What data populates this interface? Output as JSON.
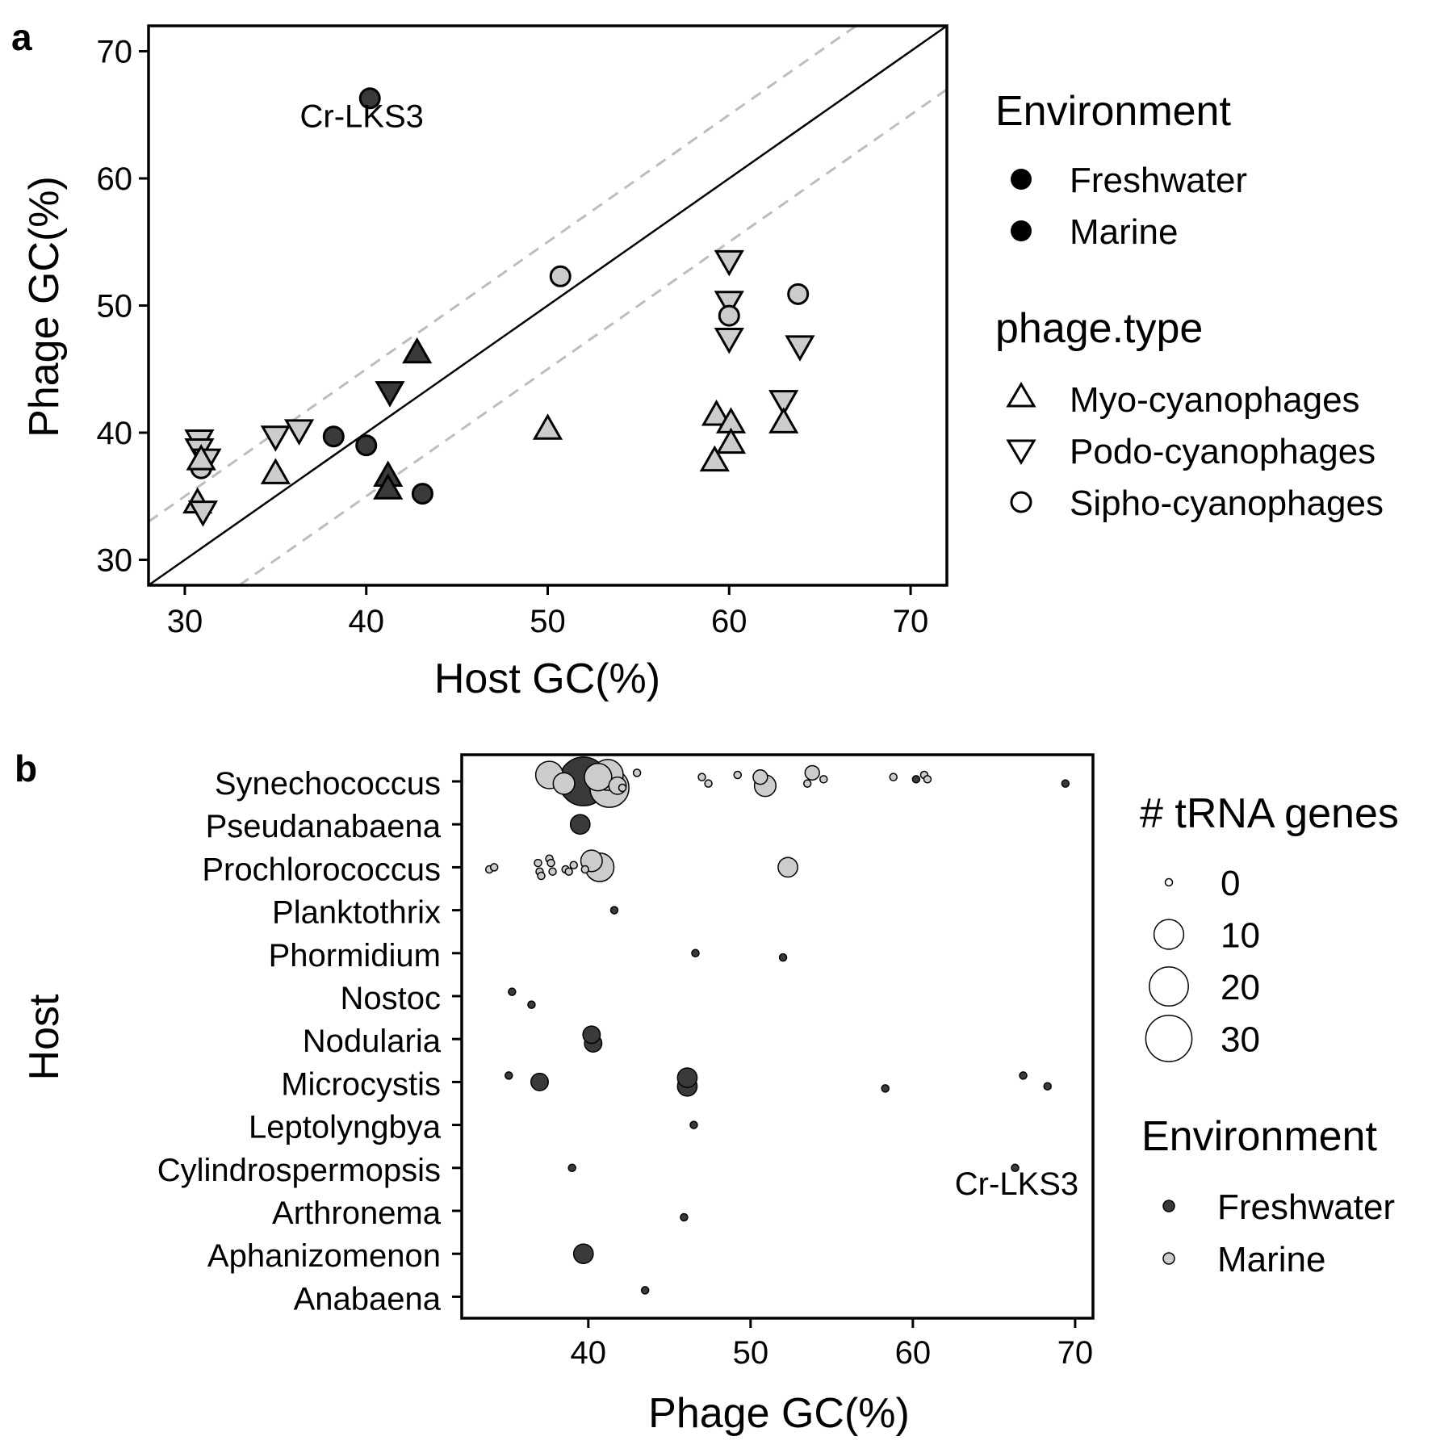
{
  "colors": {
    "freshwater": "#3a3a3a",
    "marine": "#cccccc",
    "ref_line": "#000000",
    "band_line": "#bdbdbd"
  },
  "panel_a": {
    "letter": "a"
  },
  "panel_b": {
    "letter": "b"
  },
  "chart_data": [
    {
      "type": "scatter",
      "panel": "a",
      "xlabel": "Host GC(%)",
      "ylabel": "Phage GC(%)",
      "xlim": [
        28,
        72
      ],
      "ylim": [
        28,
        72
      ],
      "xticks": [
        30,
        40,
        50,
        60,
        70
      ],
      "yticks": [
        30,
        40,
        50,
        60,
        70
      ],
      "grid": false,
      "reference_lines": [
        {
          "style": "solid",
          "slope": 1,
          "intercept": 0
        },
        {
          "style": "dashed",
          "slope": 1,
          "intercept": 5
        },
        {
          "style": "dashed",
          "slope": 1,
          "intercept": -5
        }
      ],
      "annotations": [
        {
          "text": "Cr-LKS3",
          "x": 40.2,
          "y": 66.2
        }
      ],
      "legend_environment": {
        "title": "Environment",
        "items": [
          "Freshwater",
          "Marine"
        ]
      },
      "legend_phage_type": {
        "title": "phage.type",
        "items": [
          "Myo-cyanophages",
          "Podo-cyanophages",
          "Sipho-cyanophages"
        ]
      },
      "legend_placement": "right",
      "points": [
        {
          "x": 40.2,
          "y": 66.3,
          "type": "Sipho-cyanophages",
          "env": "Freshwater"
        },
        {
          "x": 50.7,
          "y": 52.3,
          "type": "Sipho-cyanophages",
          "env": "Marine"
        },
        {
          "x": 42.8,
          "y": 46.3,
          "type": "Myo-cyanophages",
          "env": "Freshwater"
        },
        {
          "x": 41.3,
          "y": 43.2,
          "type": "Podo-cyanophages",
          "env": "Freshwater"
        },
        {
          "x": 38.2,
          "y": 39.7,
          "type": "Sipho-cyanophages",
          "env": "Freshwater"
        },
        {
          "x": 40.0,
          "y": 39.0,
          "type": "Sipho-cyanophages",
          "env": "Freshwater"
        },
        {
          "x": 43.1,
          "y": 35.2,
          "type": "Sipho-cyanophages",
          "env": "Freshwater"
        },
        {
          "x": 41.2,
          "y": 36.6,
          "type": "Myo-cyanophages",
          "env": "Freshwater"
        },
        {
          "x": 41.2,
          "y": 35.6,
          "type": "Myo-cyanophages",
          "env": "Freshwater"
        },
        {
          "x": 30.8,
          "y": 39.4,
          "type": "Podo-cyanophages",
          "env": "Marine"
        },
        {
          "x": 30.8,
          "y": 38.7,
          "type": "Podo-cyanophages",
          "env": "Marine"
        },
        {
          "x": 31.2,
          "y": 37.9,
          "type": "Podo-cyanophages",
          "env": "Marine"
        },
        {
          "x": 30.9,
          "y": 37.2,
          "type": "Sipho-cyanophages",
          "env": "Marine"
        },
        {
          "x": 30.9,
          "y": 37.9,
          "type": "Myo-cyanophages",
          "env": "Marine"
        },
        {
          "x": 30.7,
          "y": 34.5,
          "type": "Myo-cyanophages",
          "env": "Marine"
        },
        {
          "x": 31.0,
          "y": 33.8,
          "type": "Podo-cyanophages",
          "env": "Marine"
        },
        {
          "x": 35.0,
          "y": 36.8,
          "type": "Myo-cyanophages",
          "env": "Marine"
        },
        {
          "x": 35.0,
          "y": 39.7,
          "type": "Podo-cyanophages",
          "env": "Marine"
        },
        {
          "x": 36.3,
          "y": 40.2,
          "type": "Podo-cyanophages",
          "env": "Marine"
        },
        {
          "x": 50.0,
          "y": 40.3,
          "type": "Myo-cyanophages",
          "env": "Marine"
        },
        {
          "x": 60.0,
          "y": 53.5,
          "type": "Podo-cyanophages",
          "env": "Marine"
        },
        {
          "x": 60.0,
          "y": 50.3,
          "type": "Podo-cyanophages",
          "env": "Marine"
        },
        {
          "x": 60.0,
          "y": 49.2,
          "type": "Sipho-cyanophages",
          "env": "Marine"
        },
        {
          "x": 60.0,
          "y": 47.4,
          "type": "Podo-cyanophages",
          "env": "Marine"
        },
        {
          "x": 63.8,
          "y": 50.9,
          "type": "Sipho-cyanophages",
          "env": "Marine"
        },
        {
          "x": 63.9,
          "y": 46.8,
          "type": "Podo-cyanophages",
          "env": "Marine"
        },
        {
          "x": 63.0,
          "y": 42.5,
          "type": "Podo-cyanophages",
          "env": "Marine"
        },
        {
          "x": 63.0,
          "y": 40.8,
          "type": "Myo-cyanophages",
          "env": "Marine"
        },
        {
          "x": 59.3,
          "y": 41.4,
          "type": "Myo-cyanophages",
          "env": "Marine"
        },
        {
          "x": 60.1,
          "y": 40.8,
          "type": "Myo-cyanophages",
          "env": "Marine"
        },
        {
          "x": 60.1,
          "y": 39.2,
          "type": "Myo-cyanophages",
          "env": "Marine"
        },
        {
          "x": 59.2,
          "y": 37.8,
          "type": "Myo-cyanophages",
          "env": "Marine"
        }
      ]
    },
    {
      "type": "scatter",
      "panel": "b",
      "xlabel": "Phage GC(%)",
      "ylabel": "Host",
      "xlim": [
        32.2,
        71.1
      ],
      "xticks": [
        40,
        50,
        60,
        70
      ],
      "grid": false,
      "categories": [
        "Synechococcus",
        "Pseudanabaena",
        "Prochlorococcus",
        "Planktothrix",
        "Phormidium",
        "Nostoc",
        "Nodularia",
        "Microcystis",
        "Leptolyngbya",
        "Cylindrospermopsis",
        "Arthronema",
        "Aphanizomenon",
        "Anabaena"
      ],
      "annotations": [
        {
          "text": "Cr-LKS3",
          "x": 66.3,
          "category": "Cylindrospermopsis"
        }
      ],
      "legend_size": {
        "title": "# tRNA genes",
        "items": [
          0,
          10,
          20,
          30
        ]
      },
      "legend_environment": {
        "title": "Environment",
        "items": [
          "Freshwater",
          "Marine"
        ]
      },
      "legend_placement": "right",
      "points": [
        {
          "host": "Synechococcus",
          "x": 39.7,
          "offset": 0.0,
          "trna": 34,
          "env": "Freshwater"
        },
        {
          "host": "Synechococcus",
          "x": 41.2,
          "offset": -0.15,
          "trna": 11,
          "env": "Marine"
        },
        {
          "host": "Synechococcus",
          "x": 41.3,
          "offset": 0.15,
          "trna": 20,
          "env": "Marine"
        },
        {
          "host": "Synechococcus",
          "x": 40.6,
          "offset": -0.1,
          "trna": 8,
          "env": "Marine"
        },
        {
          "host": "Synechococcus",
          "x": 37.6,
          "offset": -0.15,
          "trna": 8,
          "env": "Marine"
        },
        {
          "host": "Synechococcus",
          "x": 38.5,
          "offset": 0.05,
          "trna": 4,
          "env": "Marine"
        },
        {
          "host": "Synechococcus",
          "x": 41.8,
          "offset": 0.1,
          "trna": 2,
          "env": "Marine"
        },
        {
          "host": "Synechococcus",
          "x": 42.1,
          "offset": 0.15,
          "trna": 0,
          "env": "Marine"
        },
        {
          "host": "Synechococcus",
          "x": 43.0,
          "offset": -0.2,
          "trna": 0,
          "env": "Marine"
        },
        {
          "host": "Synechococcus",
          "x": 47.0,
          "offset": -0.1,
          "trna": 0,
          "env": "Marine"
        },
        {
          "host": "Synechococcus",
          "x": 47.4,
          "offset": 0.05,
          "trna": 0,
          "env": "Marine"
        },
        {
          "host": "Synechococcus",
          "x": 49.2,
          "offset": -0.15,
          "trna": 0,
          "env": "Marine"
        },
        {
          "host": "Synechococcus",
          "x": 50.6,
          "offset": -0.1,
          "trna": 1,
          "env": "Marine"
        },
        {
          "host": "Synechococcus",
          "x": 50.9,
          "offset": 0.1,
          "trna": 4,
          "env": "Marine"
        },
        {
          "host": "Synechococcus",
          "x": 53.5,
          "offset": 0.05,
          "trna": 0,
          "env": "Marine"
        },
        {
          "host": "Synechococcus",
          "x": 53.8,
          "offset": -0.2,
          "trna": 1,
          "env": "Marine"
        },
        {
          "host": "Synechococcus",
          "x": 54.5,
          "offset": -0.05,
          "trna": 0,
          "env": "Marine"
        },
        {
          "host": "Synechococcus",
          "x": 58.8,
          "offset": -0.1,
          "trna": 0,
          "env": "Marine"
        },
        {
          "host": "Synechococcus",
          "x": 60.2,
          "offset": -0.05,
          "trna": 0,
          "env": "Freshwater"
        },
        {
          "host": "Synechococcus",
          "x": 60.7,
          "offset": -0.15,
          "trna": 0,
          "env": "Marine"
        },
        {
          "host": "Synechococcus",
          "x": 60.9,
          "offset": -0.05,
          "trna": 0,
          "env": "Marine"
        },
        {
          "host": "Synechococcus",
          "x": 69.4,
          "offset": 0.05,
          "trna": 0,
          "env": "Freshwater"
        },
        {
          "host": "Pseudanabaena",
          "x": 39.5,
          "offset": 0.0,
          "trna": 3,
          "env": "Freshwater"
        },
        {
          "host": "Prochlorococcus",
          "x": 33.9,
          "offset": 0.05,
          "trna": 0,
          "env": "Marine"
        },
        {
          "host": "Prochlorococcus",
          "x": 34.2,
          "offset": 0.0,
          "trna": 0,
          "env": "Marine"
        },
        {
          "host": "Prochlorococcus",
          "x": 36.9,
          "offset": -0.1,
          "trna": 0,
          "env": "Marine"
        },
        {
          "host": "Prochlorococcus",
          "x": 37.0,
          "offset": 0.1,
          "trna": 0,
          "env": "Marine"
        },
        {
          "host": "Prochlorococcus",
          "x": 37.1,
          "offset": 0.2,
          "trna": 0,
          "env": "Marine"
        },
        {
          "host": "Prochlorococcus",
          "x": 37.6,
          "offset": -0.2,
          "trna": 0,
          "env": "Marine"
        },
        {
          "host": "Prochlorococcus",
          "x": 37.8,
          "offset": 0.1,
          "trna": 0,
          "env": "Marine"
        },
        {
          "host": "Prochlorococcus",
          "x": 37.7,
          "offset": -0.1,
          "trna": 0,
          "env": "Marine"
        },
        {
          "host": "Prochlorococcus",
          "x": 38.6,
          "offset": 0.05,
          "trna": 0,
          "env": "Marine"
        },
        {
          "host": "Prochlorococcus",
          "x": 38.8,
          "offset": 0.1,
          "trna": 0,
          "env": "Marine"
        },
        {
          "host": "Prochlorococcus",
          "x": 39.1,
          "offset": -0.05,
          "trna": 0,
          "env": "Marine"
        },
        {
          "host": "Prochlorococcus",
          "x": 39.8,
          "offset": 0.05,
          "trna": 0,
          "env": "Marine"
        },
        {
          "host": "Prochlorococcus",
          "x": 40.2,
          "offset": -0.15,
          "trna": 4,
          "env": "Marine"
        },
        {
          "host": "Prochlorococcus",
          "x": 40.7,
          "offset": 0.0,
          "trna": 9,
          "env": "Marine"
        },
        {
          "host": "Prochlorococcus",
          "x": 52.3,
          "offset": 0.0,
          "trna": 3,
          "env": "Marine"
        },
        {
          "host": "Planktothrix",
          "x": 41.6,
          "offset": 0.0,
          "trna": 0,
          "env": "Freshwater"
        },
        {
          "host": "Phormidium",
          "x": 46.6,
          "offset": 0.0,
          "trna": 0,
          "env": "Freshwater"
        },
        {
          "host": "Phormidium",
          "x": 52.0,
          "offset": 0.1,
          "trna": 0,
          "env": "Freshwater"
        },
        {
          "host": "Nostoc",
          "x": 35.3,
          "offset": -0.1,
          "trna": 0,
          "env": "Freshwater"
        },
        {
          "host": "Nostoc",
          "x": 36.5,
          "offset": 0.2,
          "trna": 0,
          "env": "Freshwater"
        },
        {
          "host": "Nodularia",
          "x": 40.3,
          "offset": 0.1,
          "trna": 2,
          "env": "Freshwater"
        },
        {
          "host": "Nodularia",
          "x": 40.2,
          "offset": -0.1,
          "trna": 2,
          "env": "Freshwater"
        },
        {
          "host": "Microcystis",
          "x": 35.1,
          "offset": -0.15,
          "trna": 0,
          "env": "Freshwater"
        },
        {
          "host": "Microcystis",
          "x": 37.0,
          "offset": 0.0,
          "trna": 2,
          "env": "Freshwater"
        },
        {
          "host": "Microcystis",
          "x": 46.1,
          "offset": 0.1,
          "trna": 3,
          "env": "Freshwater"
        },
        {
          "host": "Microcystis",
          "x": 46.1,
          "offset": -0.1,
          "trna": 3,
          "env": "Freshwater"
        },
        {
          "host": "Microcystis",
          "x": 58.3,
          "offset": 0.15,
          "trna": 0,
          "env": "Freshwater"
        },
        {
          "host": "Microcystis",
          "x": 66.8,
          "offset": -0.15,
          "trna": 0,
          "env": "Freshwater"
        },
        {
          "host": "Microcystis",
          "x": 68.3,
          "offset": 0.1,
          "trna": 0,
          "env": "Freshwater"
        },
        {
          "host": "Leptolyngbya",
          "x": 46.5,
          "offset": 0.0,
          "trna": 0,
          "env": "Freshwater"
        },
        {
          "host": "Cylindrospermopsis",
          "x": 39.0,
          "offset": 0.0,
          "trna": 0,
          "env": "Freshwater"
        },
        {
          "host": "Cylindrospermopsis",
          "x": 66.3,
          "offset": 0.0,
          "trna": 0,
          "env": "Freshwater"
        },
        {
          "host": "Arthronema",
          "x": 45.9,
          "offset": 0.15,
          "trna": 0,
          "env": "Freshwater"
        },
        {
          "host": "Aphanizomenon",
          "x": 39.7,
          "offset": 0.0,
          "trna": 3,
          "env": "Freshwater"
        },
        {
          "host": "Anabaena",
          "x": 43.5,
          "offset": -0.15,
          "trna": 0,
          "env": "Freshwater"
        }
      ]
    }
  ]
}
